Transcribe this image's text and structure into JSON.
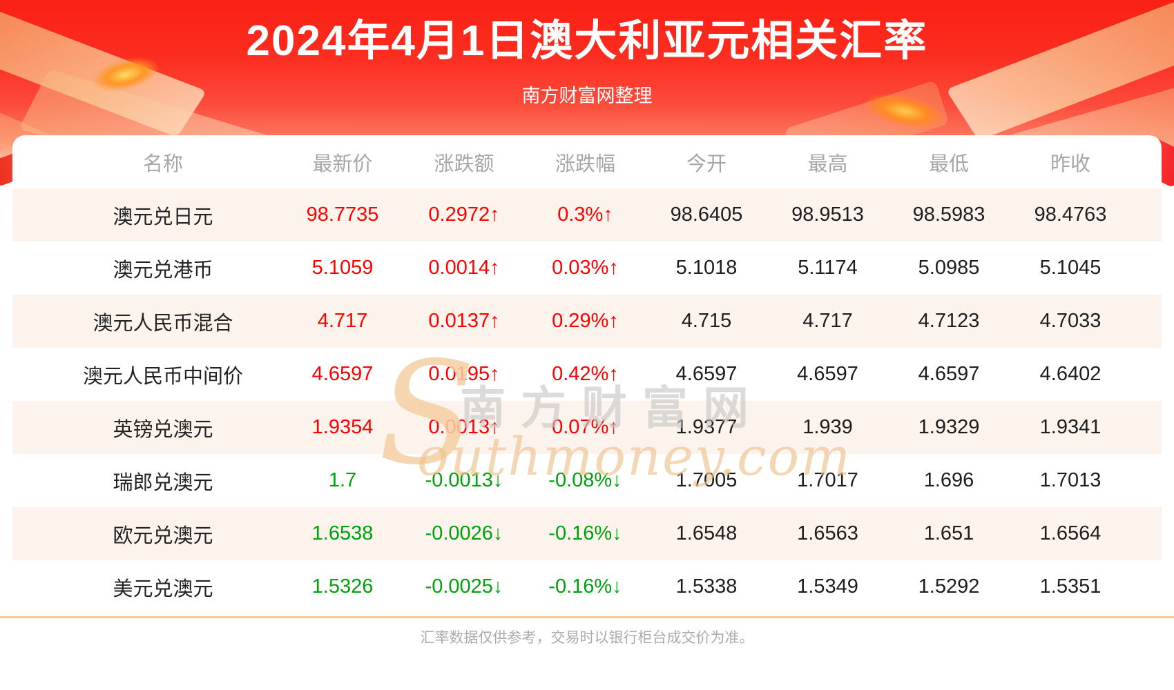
{
  "page": {
    "title": "2024年4月1日澳大利亚元相关汇率",
    "subtitle": "南方财富网整理",
    "footer_note": "汇率数据仅供参考，交易时以银行柜台成交价为准。"
  },
  "watermark": {
    "initial": "S",
    "cn_text": "南方财富网",
    "en_text": "outhmoney.com"
  },
  "icons": {
    "up_arrow": "↑",
    "down_arrow": "↓"
  },
  "colors": {
    "banner_red_top": "#fa2014",
    "up_red": "#fe0000",
    "down_green": "#00a00c",
    "alt_row": "#fdf3ed",
    "divider_orange": "#f6c793"
  },
  "chart_data": {
    "type": "table",
    "title": "2024年4月1日澳大利亚元相关汇率",
    "columns": [
      "名称",
      "最新价",
      "涨跌额",
      "涨跌幅",
      "今开",
      "最高",
      "最低",
      "昨收"
    ],
    "rows": [
      {
        "name": "澳元兑日元",
        "latest": "98.7735",
        "change": "0.2972",
        "change_pct": "0.3%",
        "direction": "up",
        "open": "98.6405",
        "high": "98.9513",
        "low": "98.5983",
        "prev_close": "98.4763"
      },
      {
        "name": "澳元兑港币",
        "latest": "5.1059",
        "change": "0.0014",
        "change_pct": "0.03%",
        "direction": "up",
        "open": "5.1018",
        "high": "5.1174",
        "low": "5.0985",
        "prev_close": "5.1045"
      },
      {
        "name": "澳元人民币混合",
        "latest": "4.717",
        "change": "0.0137",
        "change_pct": "0.29%",
        "direction": "up",
        "open": "4.715",
        "high": "4.717",
        "low": "4.7123",
        "prev_close": "4.7033"
      },
      {
        "name": "澳元人民币中间价",
        "latest": "4.6597",
        "change": "0.0195",
        "change_pct": "0.42%",
        "direction": "up",
        "open": "4.6597",
        "high": "4.6597",
        "low": "4.6597",
        "prev_close": "4.6402"
      },
      {
        "name": "英镑兑澳元",
        "latest": "1.9354",
        "change": "0.0013",
        "change_pct": "0.07%",
        "direction": "up",
        "open": "1.9377",
        "high": "1.939",
        "low": "1.9329",
        "prev_close": "1.9341"
      },
      {
        "name": "瑞郎兑澳元",
        "latest": "1.7",
        "change": "-0.0013",
        "change_pct": "-0.08%",
        "direction": "down",
        "open": "1.7005",
        "high": "1.7017",
        "low": "1.696",
        "prev_close": "1.7013"
      },
      {
        "name": "欧元兑澳元",
        "latest": "1.6538",
        "change": "-0.0026",
        "change_pct": "-0.16%",
        "direction": "down",
        "open": "1.6548",
        "high": "1.6563",
        "low": "1.651",
        "prev_close": "1.6564"
      },
      {
        "name": "美元兑澳元",
        "latest": "1.5326",
        "change": "-0.0025",
        "change_pct": "-0.16%",
        "direction": "down",
        "open": "1.5338",
        "high": "1.5349",
        "low": "1.5292",
        "prev_close": "1.5351"
      }
    ]
  }
}
